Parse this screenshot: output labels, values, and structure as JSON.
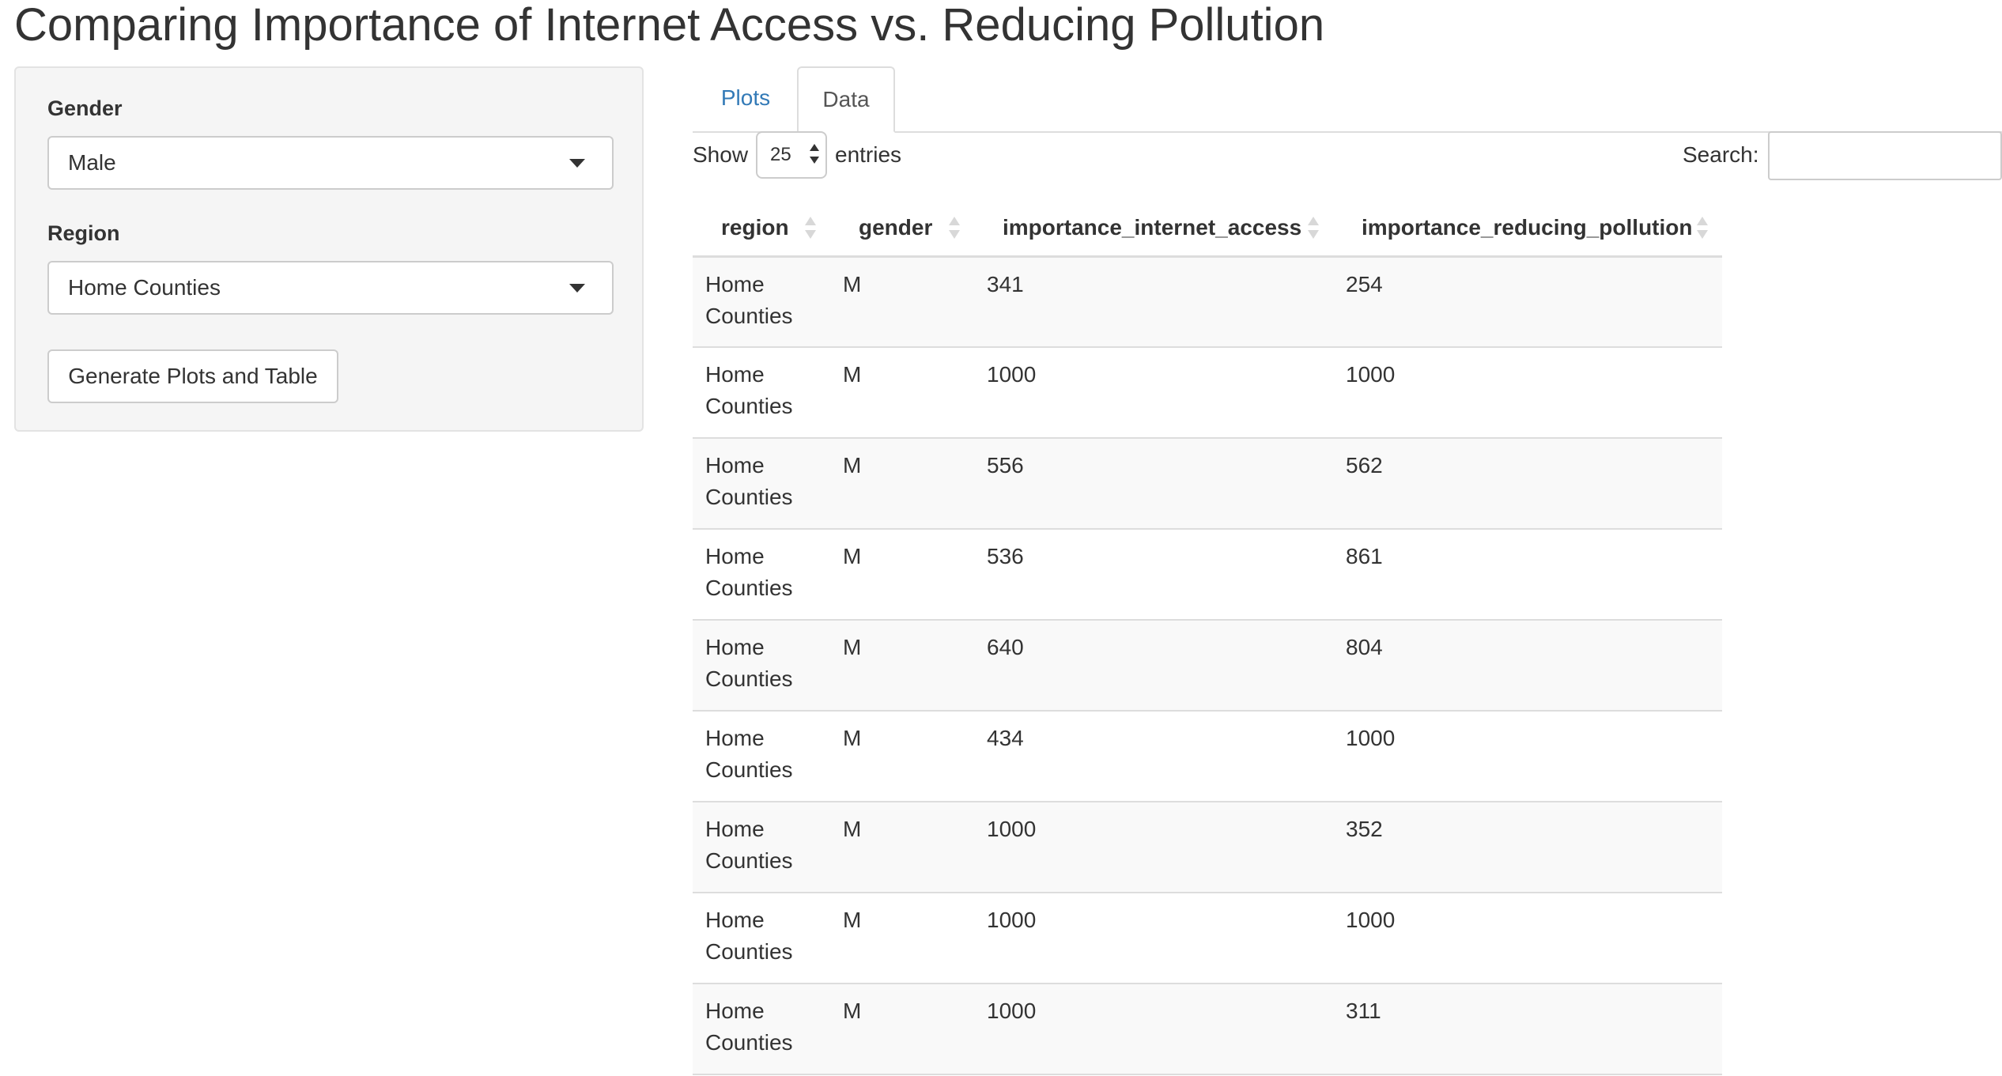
{
  "page": {
    "title": "Comparing Importance of Internet Access vs. Reducing Pollution"
  },
  "sidebar": {
    "gender_label": "Gender",
    "gender_value": "Male",
    "region_label": "Region",
    "region_value": "Home Counties",
    "generate_label": "Generate Plots and Table"
  },
  "tabs": {
    "plots": "Plots",
    "data": "Data",
    "active": "Data"
  },
  "table_controls": {
    "show_label": "Show",
    "entries_value": "25",
    "entries_label": "entries",
    "search_label": "Search:",
    "search_value": ""
  },
  "table": {
    "columns": [
      "region",
      "gender",
      "importance_internet_access",
      "importance_reducing_pollution"
    ],
    "rows": [
      [
        "Home Counties",
        "M",
        "341",
        "254"
      ],
      [
        "Home Counties",
        "M",
        "1000",
        "1000"
      ],
      [
        "Home Counties",
        "M",
        "556",
        "562"
      ],
      [
        "Home Counties",
        "M",
        "536",
        "861"
      ],
      [
        "Home Counties",
        "M",
        "640",
        "804"
      ],
      [
        "Home Counties",
        "M",
        "434",
        "1000"
      ],
      [
        "Home Counties",
        "M",
        "1000",
        "352"
      ],
      [
        "Home Counties",
        "M",
        "1000",
        "1000"
      ],
      [
        "Home Counties",
        "M",
        "1000",
        "311"
      ]
    ]
  },
  "icons": {
    "dropdown": "chevron-down-icon",
    "sort": "sort-both-icon",
    "stepper": "updown-stepper-icon"
  },
  "colors": {
    "link": "#337ab7",
    "panel_bg": "#f5f5f5",
    "stripe": "#f9f9f9",
    "border": "#dddddd"
  }
}
